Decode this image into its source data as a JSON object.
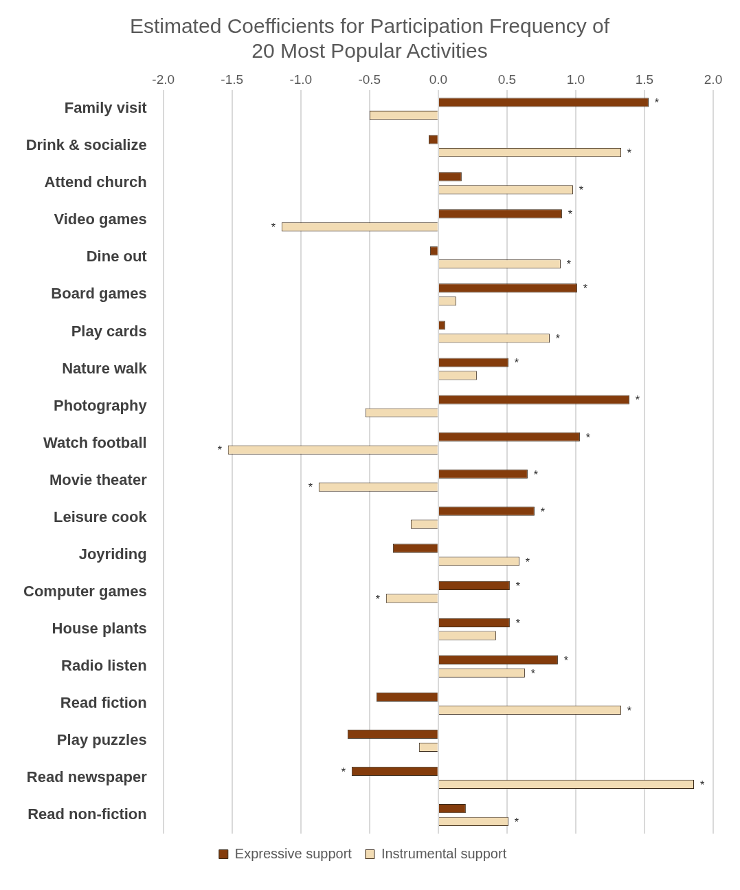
{
  "chart_data": {
    "type": "bar",
    "orientation": "horizontal",
    "title": "Estimated Coefficients for Participation Frequency of 20 Most Popular Activities",
    "categories": [
      "Family visit",
      "Drink & socialize",
      "Attend church",
      "Video games",
      "Dine out",
      "Board games",
      "Play cards",
      "Nature walk",
      "Photography",
      "Watch football",
      "Movie theater",
      "Leisure cook",
      "Joyriding",
      "Computer games",
      "House plants",
      "Radio listen",
      "Read fiction",
      "Play puzzles",
      "Read newspaper",
      "Read non-fiction"
    ],
    "series": [
      {
        "name": "Expressive support",
        "color": "#843c0c",
        "values": [
          1.53,
          -0.07,
          0.17,
          0.9,
          -0.06,
          1.01,
          0.05,
          0.51,
          1.39,
          1.03,
          0.65,
          0.7,
          -0.33,
          0.52,
          0.52,
          0.87,
          -0.45,
          -0.66,
          -0.63,
          0.2
        ],
        "value_labels": [
          "*",
          null,
          null,
          "*",
          null,
          "*",
          null,
          "*",
          "*",
          "*",
          "*",
          "*",
          null,
          "*",
          "*",
          "*",
          null,
          null,
          "*",
          null
        ]
      },
      {
        "name": "Instrumental support",
        "color": "#f2dcb4",
        "values": [
          -0.5,
          1.33,
          0.98,
          -1.14,
          0.89,
          0.13,
          0.81,
          0.28,
          -0.53,
          -1.53,
          -0.87,
          -0.2,
          0.59,
          -0.38,
          0.42,
          0.63,
          1.33,
          -0.14,
          1.86,
          0.51
        ],
        "value_labels": [
          null,
          "*",
          "*",
          "*",
          "*",
          null,
          "*",
          null,
          null,
          "*",
          "*",
          null,
          "*",
          "*",
          null,
          "*",
          "*",
          null,
          "*",
          "*"
        ]
      }
    ],
    "xlim": [
      -2,
      2
    ],
    "xticks": [
      {
        "value": -2,
        "label": "-2.0"
      },
      {
        "value": -1.5,
        "label": "-1.5"
      },
      {
        "value": -1,
        "label": "-1.0"
      },
      {
        "value": -0.5,
        "label": "-0.5"
      },
      {
        "value": 0,
        "label": "0.0"
      },
      {
        "value": 0.5,
        "label": "0.5"
      },
      {
        "value": 1,
        "label": "1.0"
      },
      {
        "value": 1.5,
        "label": "1.5"
      },
      {
        "value": 2,
        "label": "2.0"
      }
    ],
    "grid": "x",
    "legend": "bottom"
  }
}
